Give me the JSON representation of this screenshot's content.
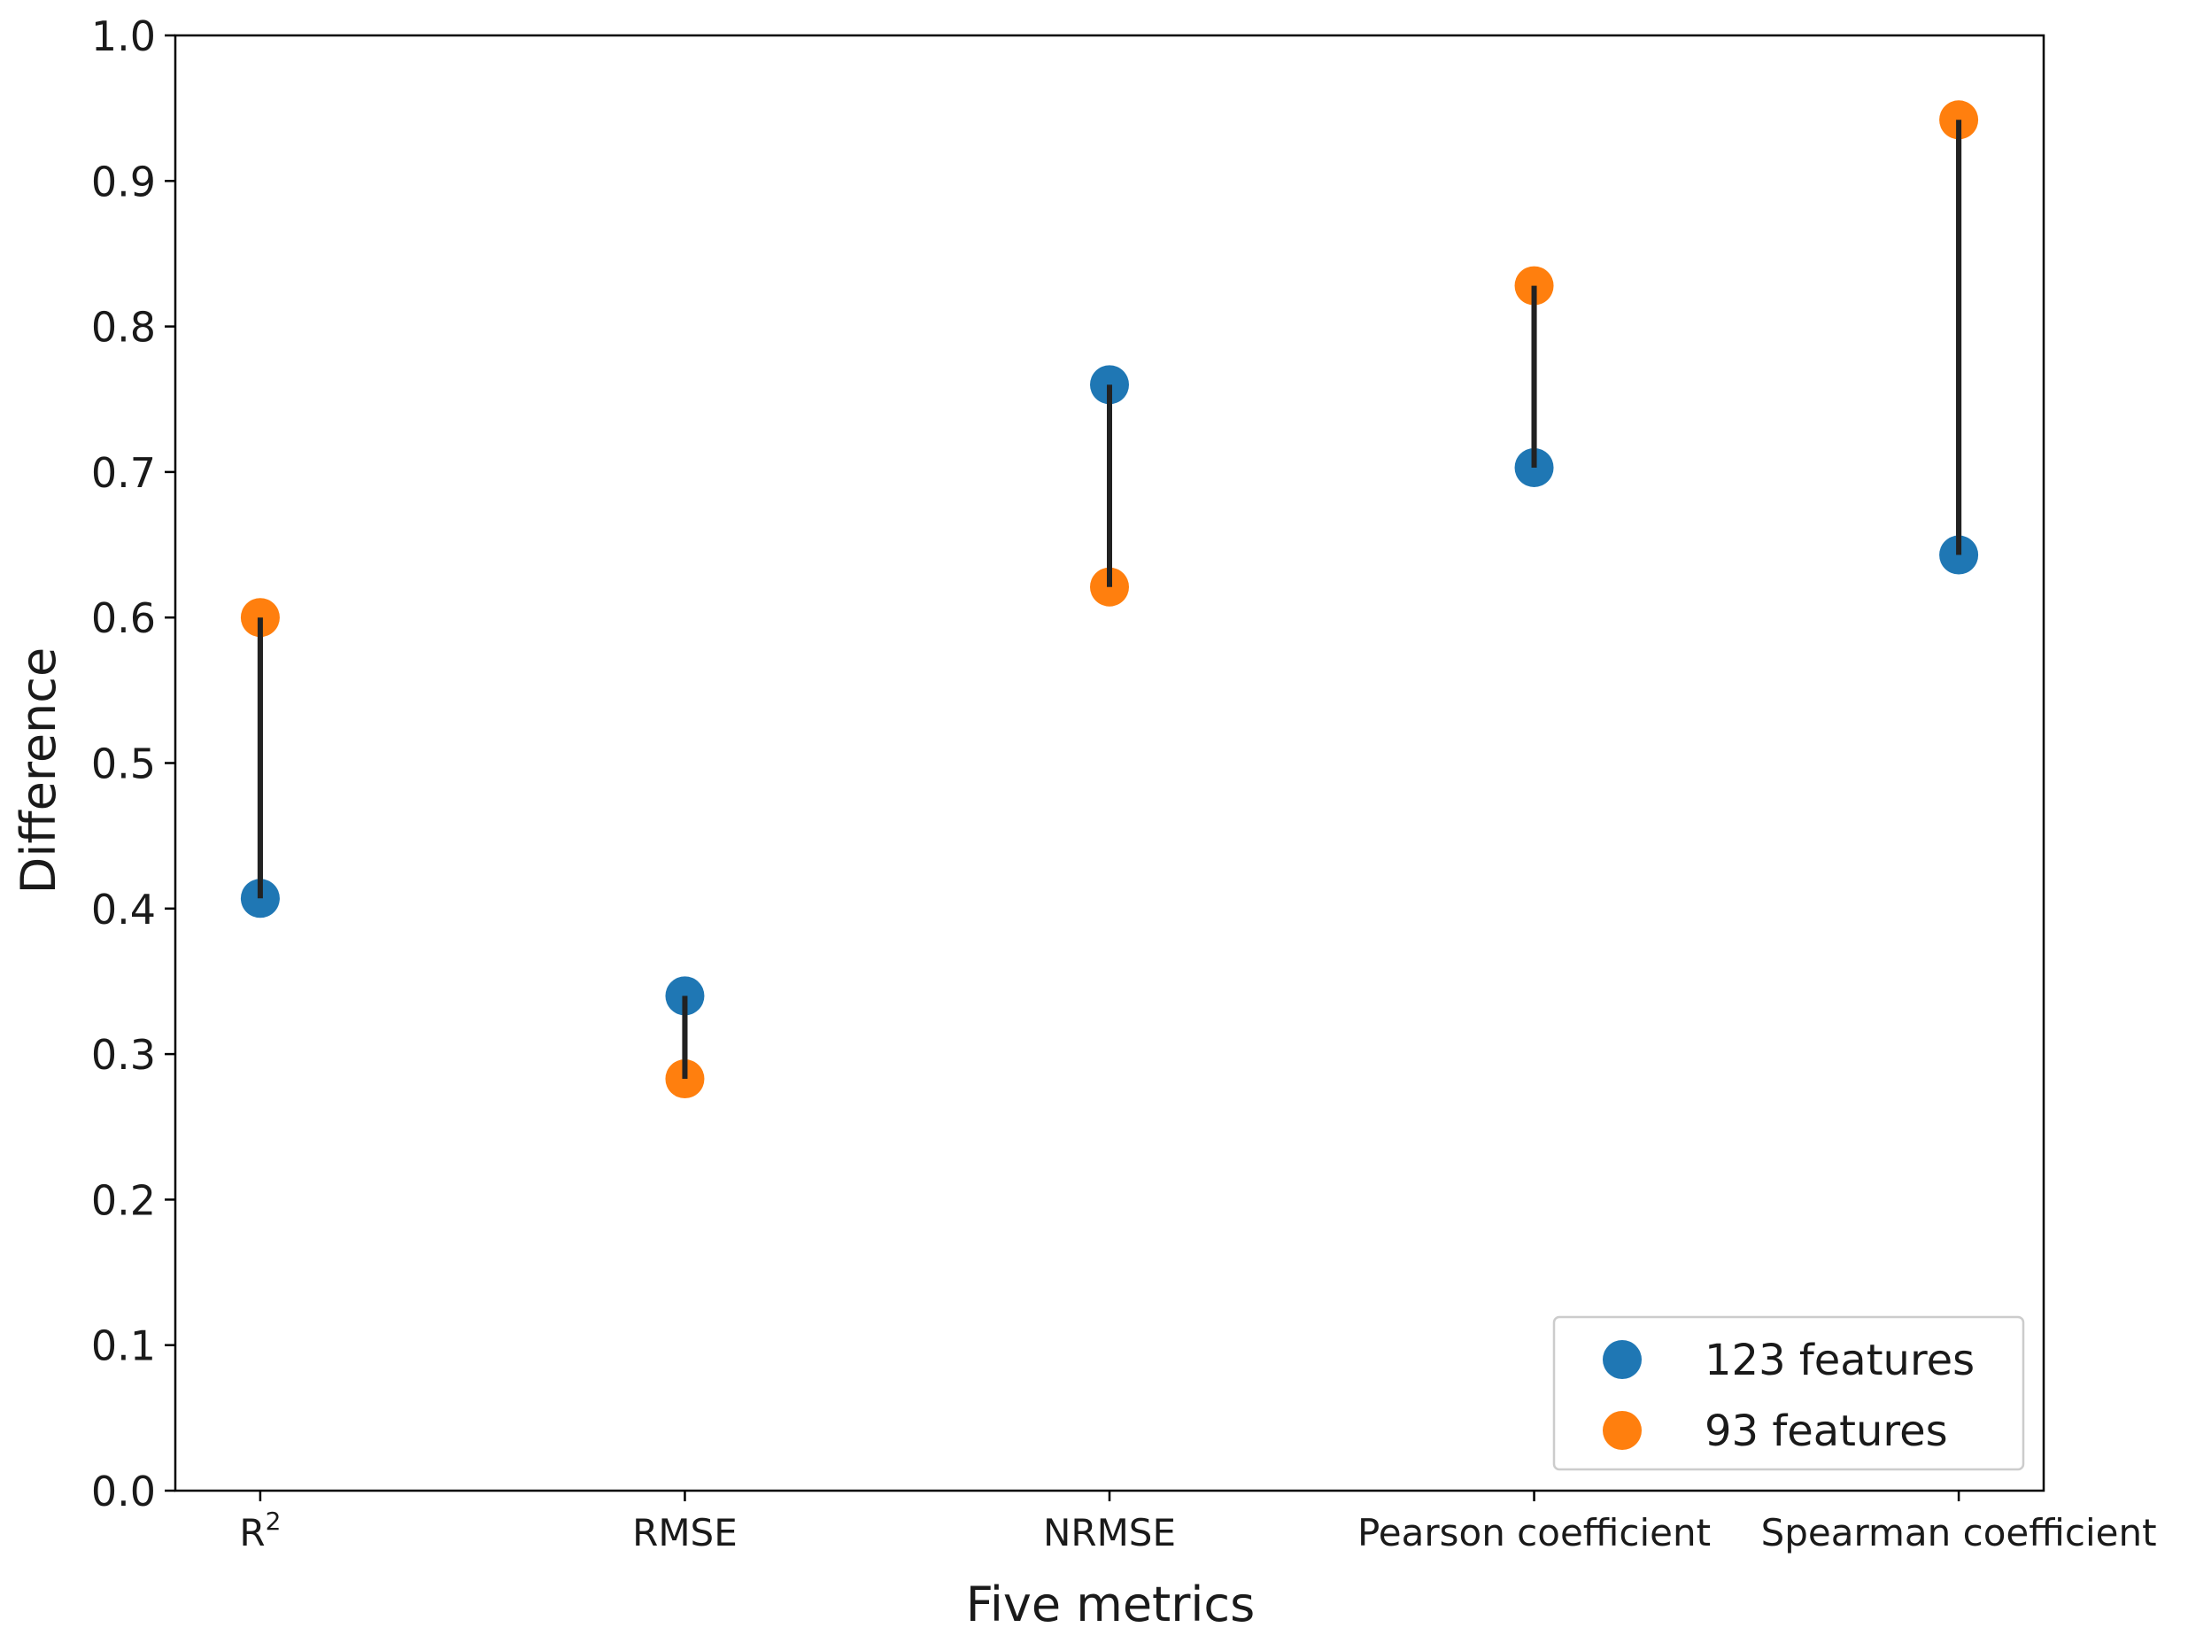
{
  "chart_data": {
    "type": "scatter",
    "title": "",
    "xlabel": "Five metrics",
    "ylabel": "Difference",
    "ylim": [
      0.0,
      1.0
    ],
    "yticks": [
      0.0,
      0.1,
      0.2,
      0.3,
      0.4,
      0.5,
      0.6,
      0.7,
      0.8,
      0.9,
      1.0
    ],
    "ytick_labels": [
      "0.0",
      "0.1",
      "0.2",
      "0.3",
      "0.4",
      "0.5",
      "0.6",
      "0.7",
      "0.8",
      "0.9",
      "1.0"
    ],
    "categories": [
      {
        "base": "R",
        "sup": "2"
      },
      {
        "base": "RMSE",
        "sup": ""
      },
      {
        "base": "NRMSE",
        "sup": ""
      },
      {
        "base": "Pearson coefficient",
        "sup": ""
      },
      {
        "base": "Spearman coefficient",
        "sup": ""
      }
    ],
    "series": [
      {
        "name": "123 features",
        "color": "#1f77b4",
        "values": [
          0.407,
          0.34,
          0.76,
          0.703,
          0.643
        ]
      },
      {
        "name": "93 features",
        "color": "#ff7f0e",
        "values": [
          0.6,
          0.283,
          0.621,
          0.828,
          0.942
        ]
      }
    ],
    "connector_color": "#222222",
    "legend": {
      "location": "lower-right"
    },
    "grid": false
  }
}
